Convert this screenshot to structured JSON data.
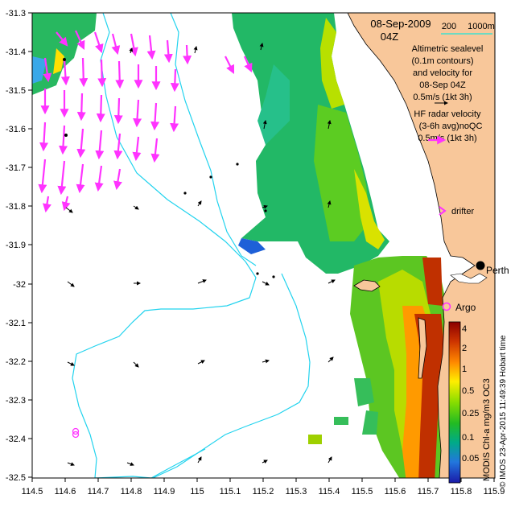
{
  "header": {
    "date": "08-Sep-2009",
    "hour": "04Z"
  },
  "scale_bar": {
    "label_left": "200",
    "label_right": "1000m"
  },
  "legend": {
    "altimetry_lines": [
      "Altimetric sealevel",
      "(0.1m contours)",
      "and velocity for",
      "08-Sep 04Z",
      "0.5m/s (1kt 3h)"
    ],
    "hf_radar_lines": [
      "HF radar velocity",
      "(3-6h avg)noQC",
      "0.5m/s (1kt 3h)"
    ],
    "drifter_label": "drifter",
    "argo_label": "Argo",
    "city_label": "Perth"
  },
  "colorbar": {
    "title": "MODIS Chl-a mg/m3 OC3",
    "ticks": [
      "4",
      "2",
      "1",
      "0.5",
      "0.25",
      "0.1",
      "0.05"
    ]
  },
  "credit": "© IMOS 23-Apr-2015 11:49:39 Hobart time",
  "axes": {
    "x_ticks": [
      "114.5",
      "114.6",
      "114.7",
      "114.8",
      "114.9",
      "115",
      "115.1",
      "115.2",
      "115.3",
      "115.4",
      "115.5",
      "115.6",
      "115.7",
      "115.8",
      "115.9"
    ],
    "y_ticks": [
      "-31.3",
      "-31.4",
      "-31.5",
      "-31.6",
      "-31.7",
      "-31.8",
      "-31.9",
      "-32",
      "-32.1",
      "-32.2",
      "-32.3",
      "-32.4",
      "-32.5"
    ]
  },
  "colors": {
    "land": "#f8c79a",
    "isobath": "#22d3ee",
    "hf_radar": "#ff33ff",
    "argo": "#ff33ff",
    "scale_line": "#40e0d0"
  }
}
